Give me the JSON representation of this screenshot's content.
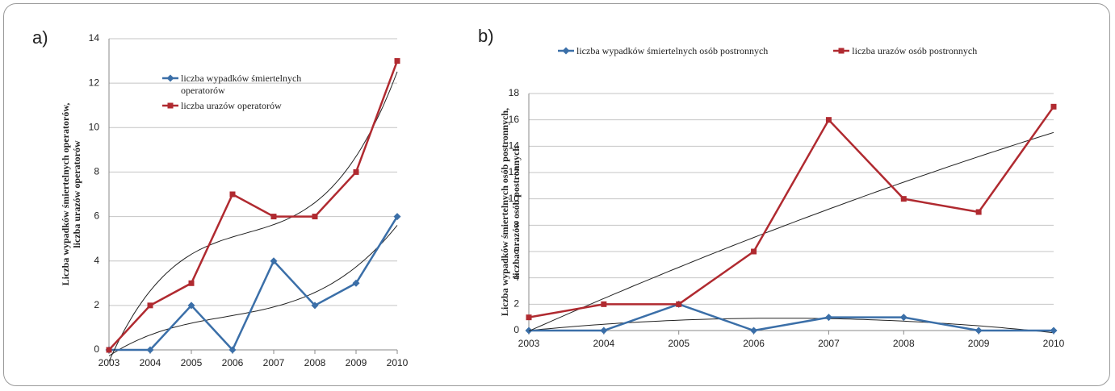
{
  "chart_data": [
    {
      "type": "line",
      "panel_label": "a)",
      "ylabel": [
        "Liczba wypadków śmiertelnych operatorów,",
        "liczba urazów operatorów"
      ],
      "categories": [
        "2003",
        "2004",
        "2005",
        "2006",
        "2007",
        "2008",
        "2009",
        "2010"
      ],
      "series": [
        {
          "name": "liczba wypadków śmiertelnych operatorów",
          "color": "#3b6fa8",
          "marker": "diamond",
          "trendline_order": 3,
          "values": [
            0,
            0,
            2,
            0,
            4,
            2,
            3,
            6
          ]
        },
        {
          "name": "liczba urazów operatorów",
          "color": "#b02a30",
          "marker": "square",
          "trendline_order": 3,
          "values": [
            0,
            2,
            3,
            7,
            6,
            6,
            8,
            13
          ]
        }
      ],
      "ylim": [
        0,
        14
      ],
      "yticks": [
        0,
        2,
        4,
        6,
        8,
        10,
        12,
        14
      ],
      "grid": true,
      "legend": "inside"
    },
    {
      "type": "line",
      "panel_label": "b)",
      "ylabel": [
        "Liczba wypadków śmiertelnych osób postronnych,",
        "liczba urazów osób postronnych"
      ],
      "categories": [
        "2003",
        "2004",
        "2005",
        "2006",
        "2007",
        "2008",
        "2009",
        "2010"
      ],
      "series": [
        {
          "name": "liczba wypadków śmiertelnych osób postronnych",
          "color": "#3b6fa8",
          "marker": "diamond",
          "trendline_order": 2,
          "values": [
            0,
            0,
            2,
            0,
            1,
            1,
            0,
            0
          ]
        },
        {
          "name": "liczba urazów osób postronnych",
          "color": "#b02a30",
          "marker": "square",
          "trendline_order": 2,
          "values": [
            1,
            2,
            2,
            6,
            16,
            10,
            9,
            17
          ]
        }
      ],
      "ylim": [
        0,
        18
      ],
      "yticks": [
        0,
        2,
        4,
        6,
        8,
        10,
        12,
        14,
        16,
        18
      ],
      "grid": true,
      "legend": "top"
    }
  ]
}
